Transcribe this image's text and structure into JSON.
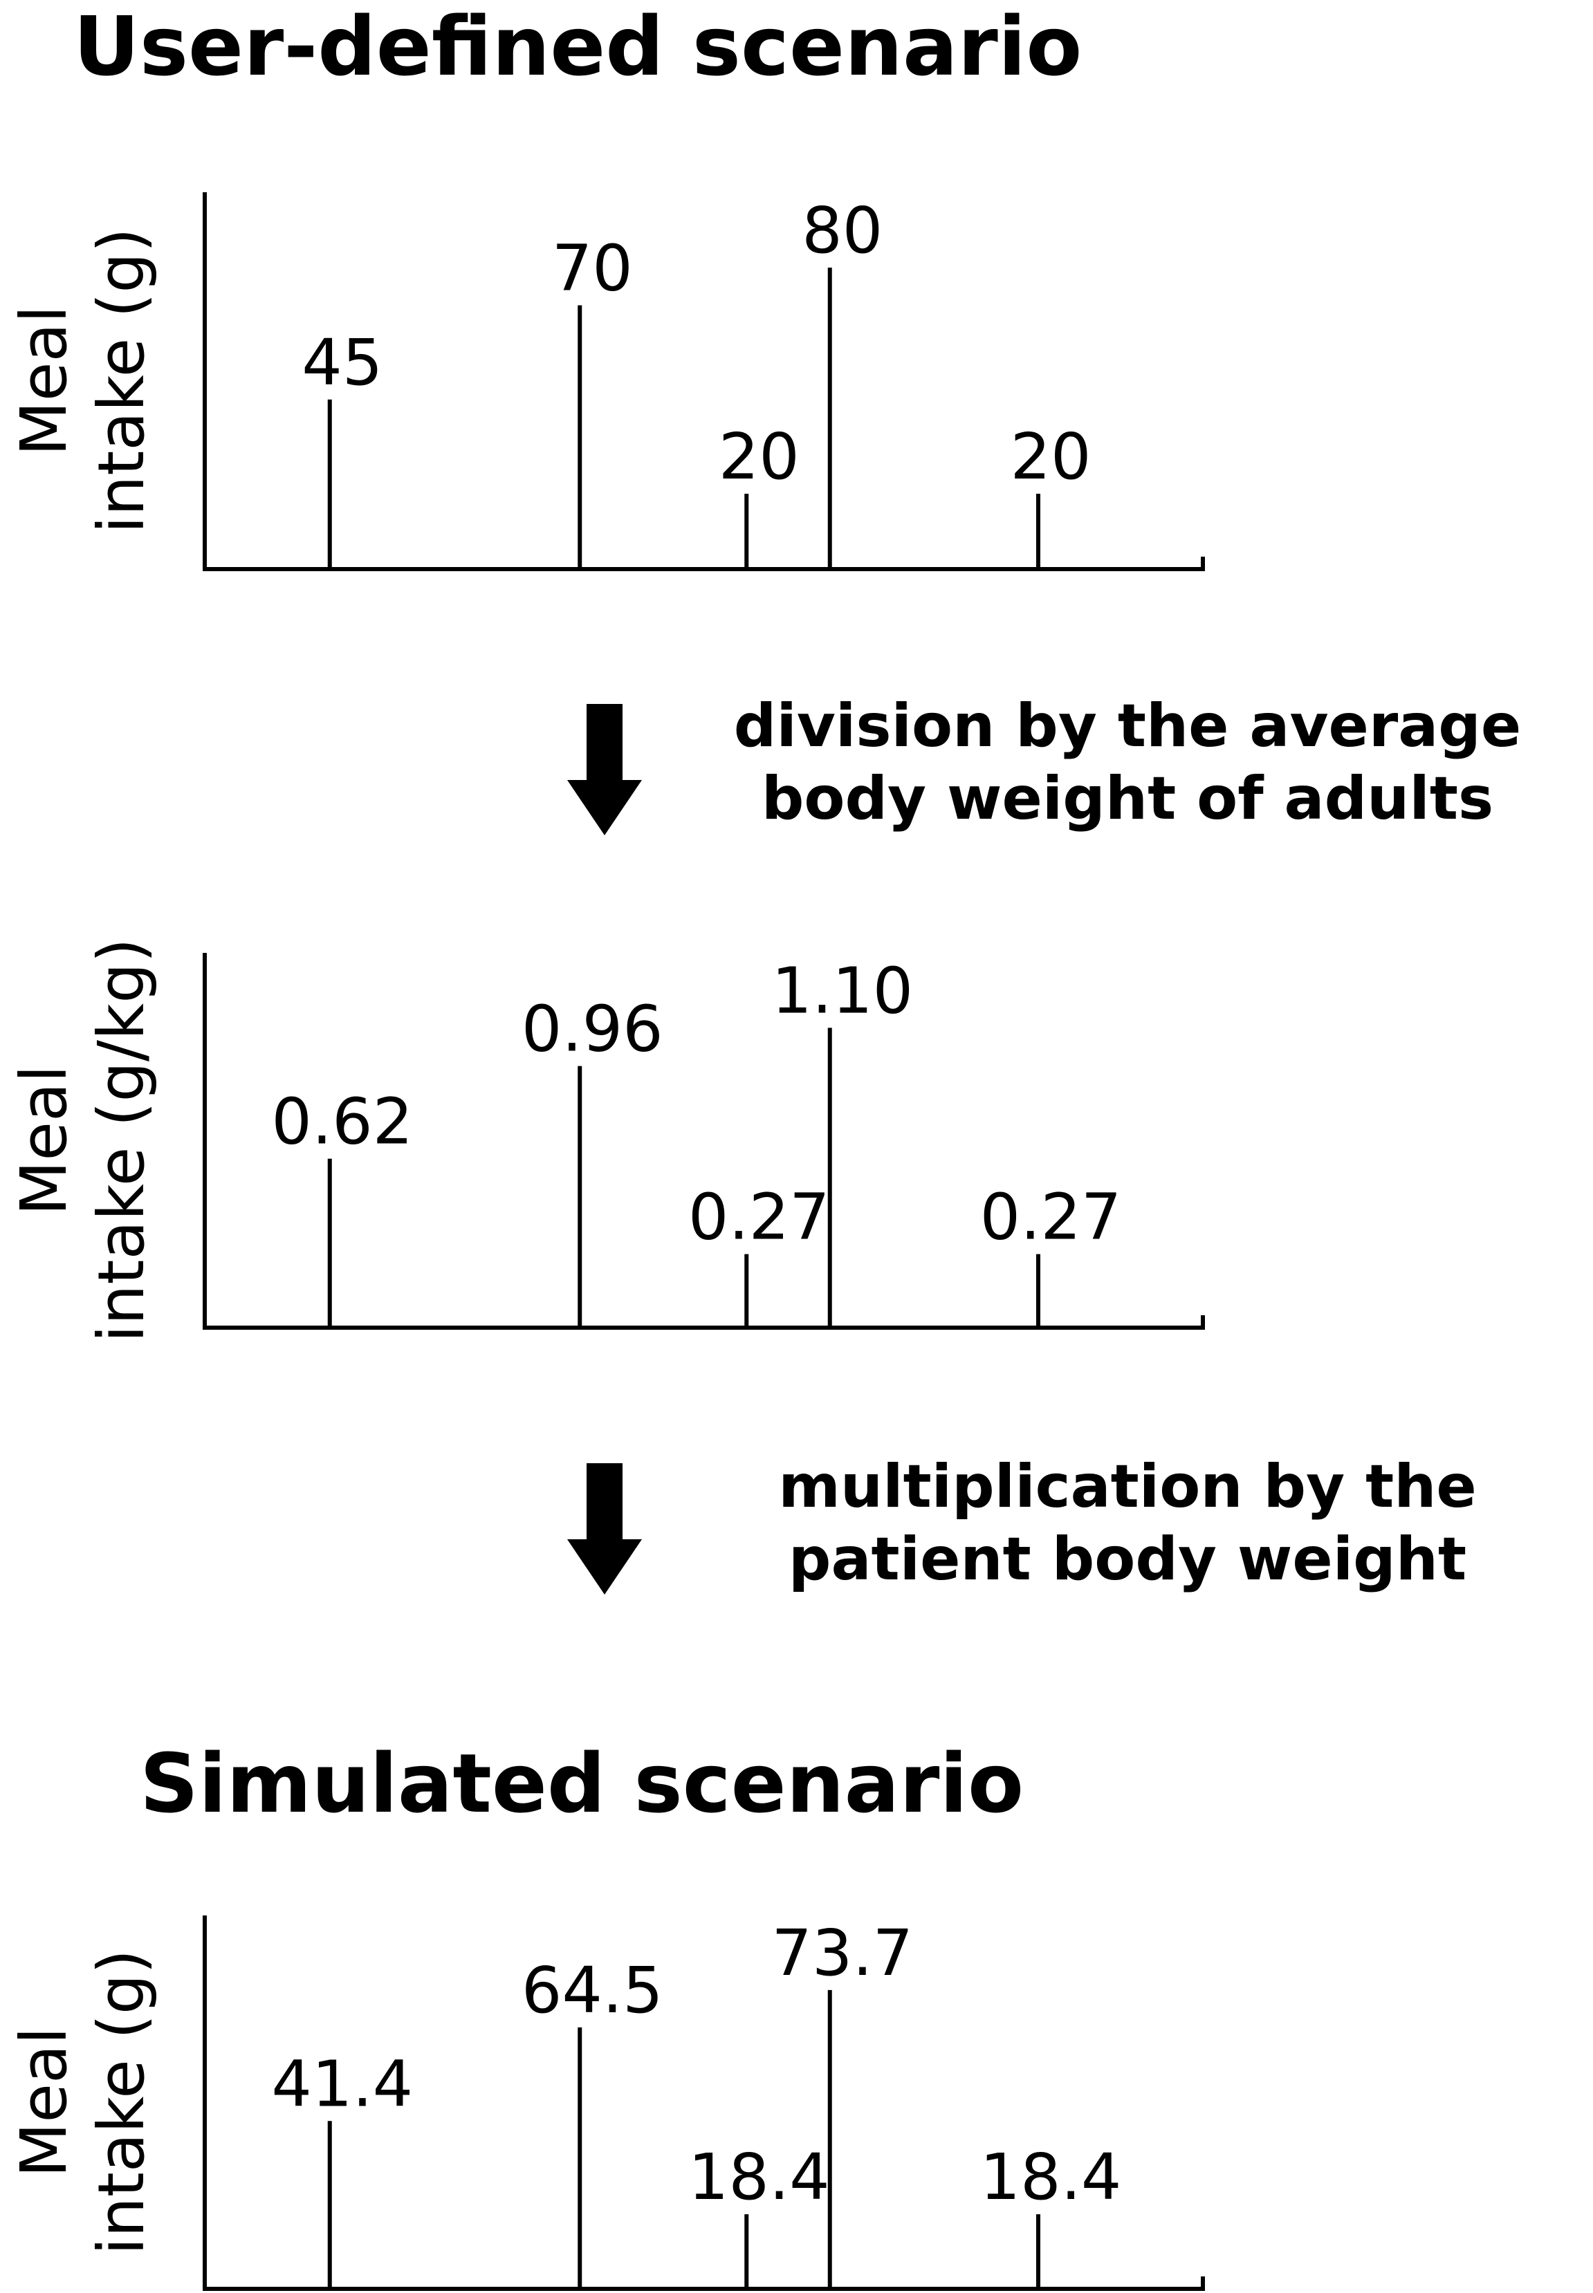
{
  "sections": [
    {
      "heading": "User-defined scenario"
    },
    {
      "heading": "Simulated scenario"
    }
  ],
  "steps": [
    {
      "lines": [
        "division by the average",
        "body weight of adults"
      ],
      "icon": "down-arrow-icon"
    },
    {
      "lines": [
        "multiplication by the",
        "patient body weight"
      ],
      "icon": "down-arrow-icon"
    }
  ],
  "chart_data": [
    {
      "type": "bar",
      "style": "stem",
      "ylabel": [
        "Meal",
        "intake (g)"
      ],
      "x": [
        1,
        2.5,
        3.5,
        4,
        5.25
      ],
      "values": [
        45,
        70,
        20,
        80,
        20
      ],
      "data_labels": [
        "45",
        "70",
        "20",
        "80",
        "20"
      ],
      "ylim": [
        0,
        100
      ],
      "xlim": [
        0.25,
        6.25
      ],
      "grid": false
    },
    {
      "type": "bar",
      "style": "stem",
      "ylabel": [
        "Meal",
        "intake (g/kg)"
      ],
      "x": [
        1,
        2.5,
        3.5,
        4,
        5.25
      ],
      "values": [
        0.62,
        0.96,
        0.27,
        1.1,
        0.27
      ],
      "data_labels": [
        "0.62",
        "0.96",
        "0.27",
        "1.10",
        "0.27"
      ],
      "ylim": [
        0,
        1.375
      ],
      "xlim": [
        0.25,
        6.25
      ],
      "grid": false
    },
    {
      "type": "bar",
      "style": "stem",
      "ylabel": [
        "Meal",
        "intake (g)"
      ],
      "x": [
        1,
        2.5,
        3.5,
        4,
        5.25
      ],
      "values": [
        41.4,
        64.5,
        18.4,
        73.7,
        18.4
      ],
      "data_labels": [
        "41.4",
        "64.5",
        "18.4",
        "73.7",
        "18.4"
      ],
      "ylim": [
        0,
        92.1
      ],
      "xlim": [
        0.25,
        6.25
      ],
      "grid": false
    }
  ]
}
